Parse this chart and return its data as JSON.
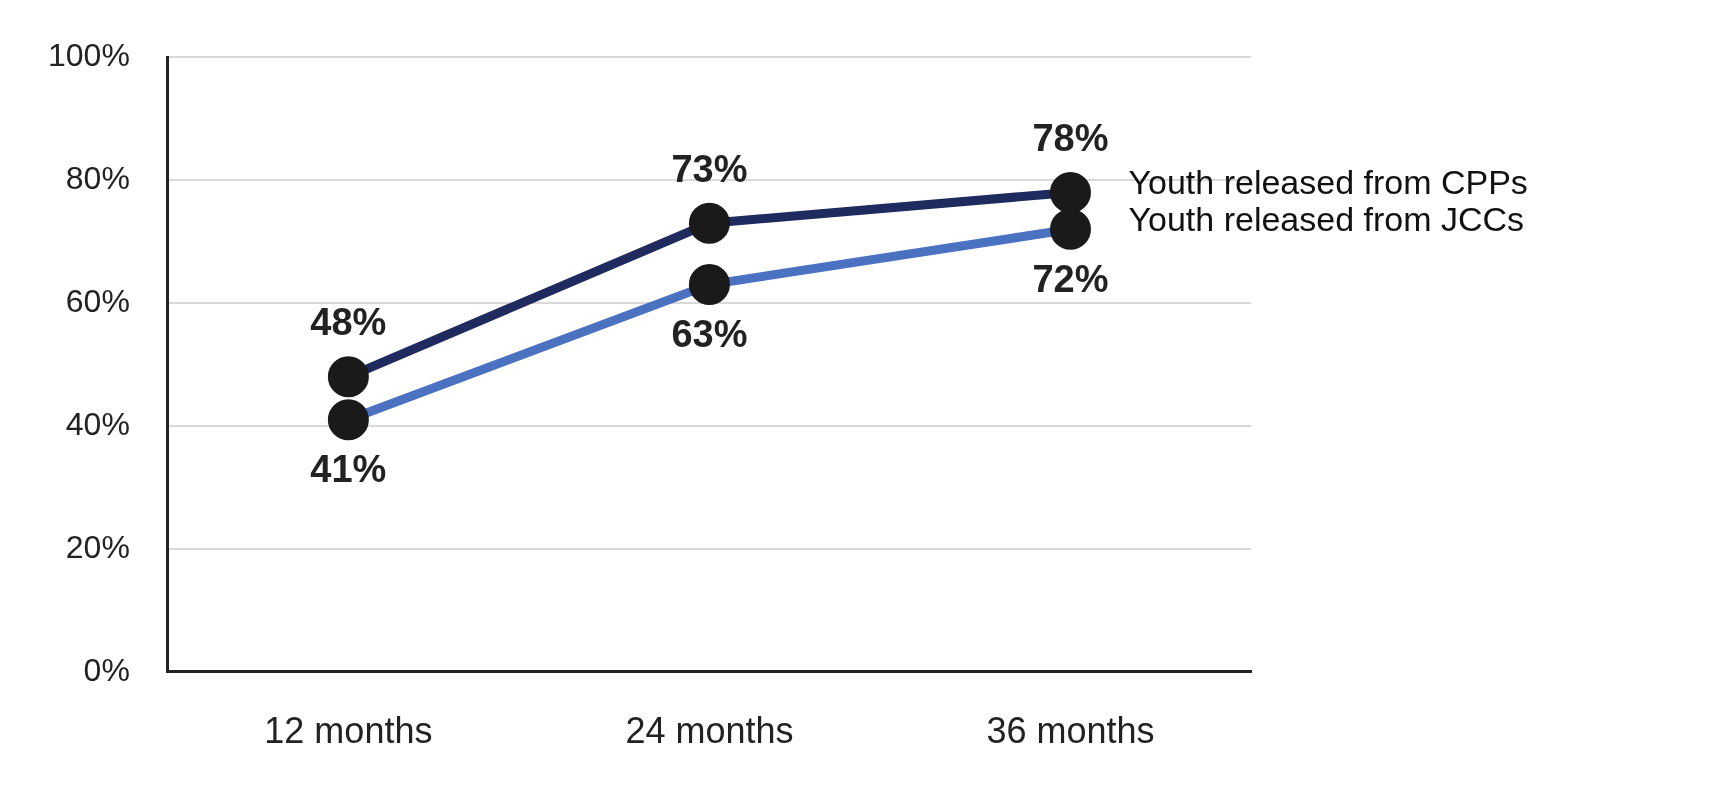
{
  "chart_data": {
    "type": "line",
    "categories": [
      "12 months",
      "24 months",
      "36 months"
    ],
    "series": [
      {
        "name": "Youth released from CPPs",
        "color": "#1f2a5e",
        "values": [
          48,
          73,
          78
        ],
        "value_labels": [
          "48%",
          "73%",
          "78%"
        ]
      },
      {
        "name": "Youth released from JCCs",
        "color": "#4a72c0",
        "values": [
          41,
          63,
          72
        ],
        "value_labels": [
          "41%",
          "63%",
          "72%"
        ]
      }
    ],
    "ylim": [
      0,
      100
    ],
    "yticks": [
      {
        "value": 0,
        "label": "0%"
      },
      {
        "value": 20,
        "label": "20%"
      },
      {
        "value": 40,
        "label": "40%"
      },
      {
        "value": 60,
        "label": "60%"
      },
      {
        "value": 80,
        "label": "80%"
      },
      {
        "value": 100,
        "label": "100%"
      }
    ],
    "grid": "y",
    "marker": "circle",
    "line_style": "solid"
  }
}
